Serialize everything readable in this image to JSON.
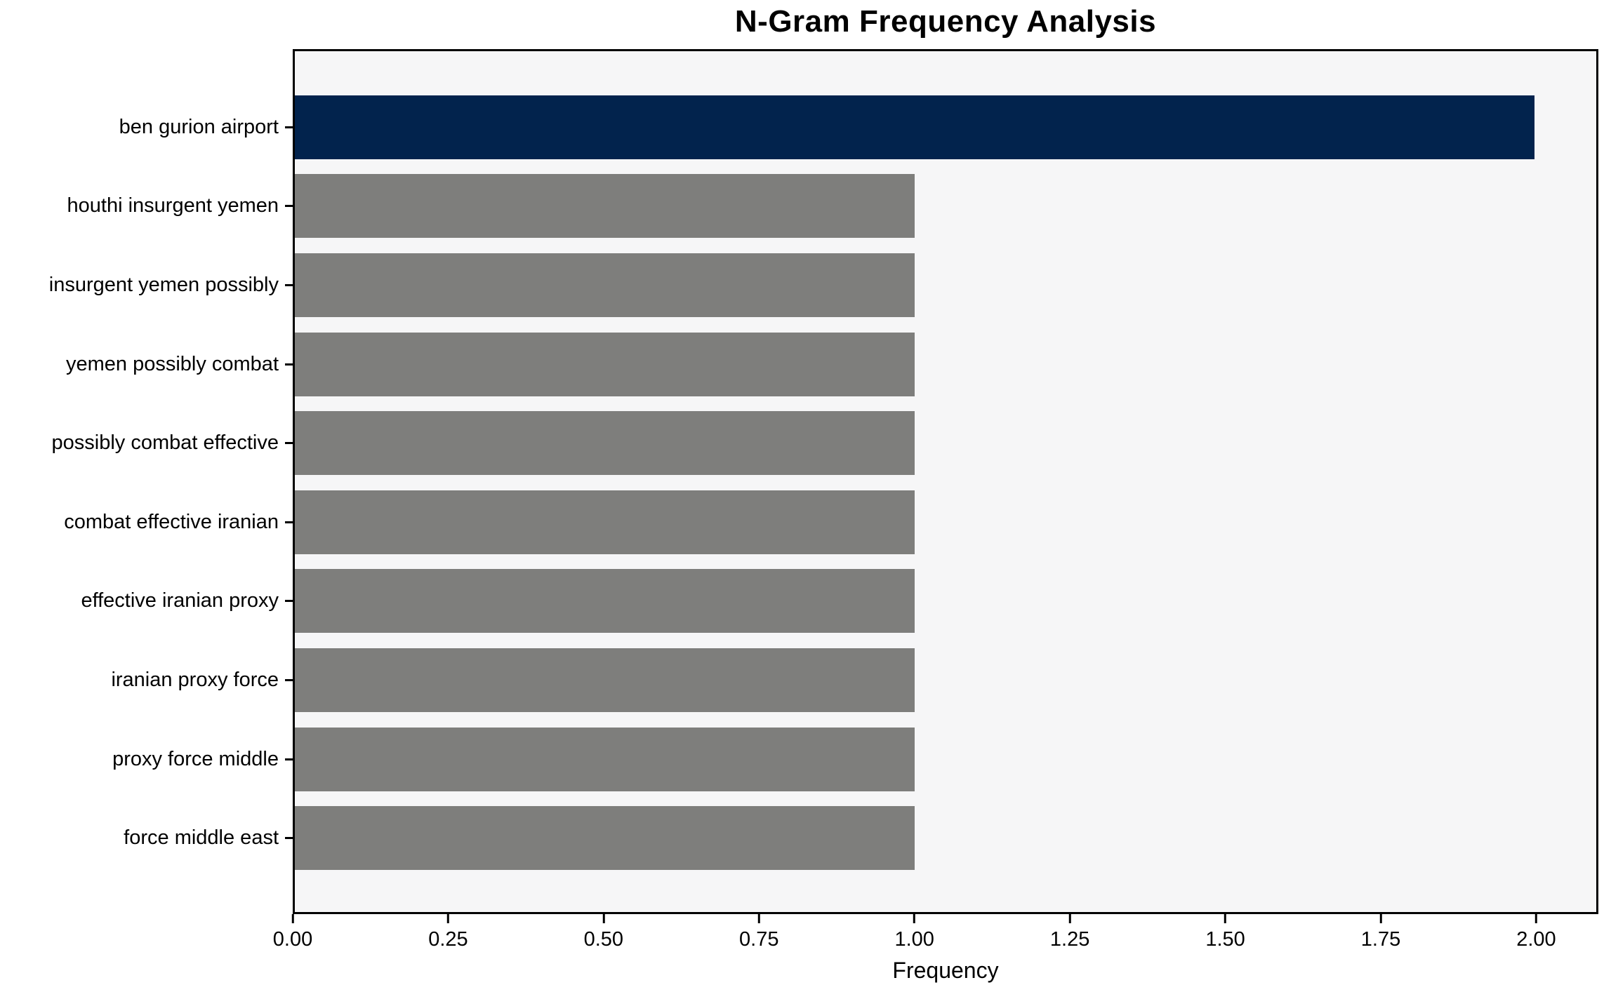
{
  "chart_data": {
    "type": "bar",
    "orientation": "horizontal",
    "title": "N-Gram Frequency Analysis",
    "xlabel": "Frequency",
    "ylabel": "",
    "grid": false,
    "legend": null,
    "categories": [
      "ben gurion airport",
      "houthi insurgent yemen",
      "insurgent yemen possibly",
      "yemen possibly combat",
      "possibly combat effective",
      "combat effective iranian",
      "effective iranian proxy",
      "iranian proxy force",
      "proxy force middle",
      "force middle east"
    ],
    "values": [
      2,
      1,
      1,
      1,
      1,
      1,
      1,
      1,
      1,
      1
    ],
    "xlim": [
      0,
      2.1
    ],
    "xticks": [
      {
        "value": 0.0,
        "label": "0.00"
      },
      {
        "value": 0.25,
        "label": "0.25"
      },
      {
        "value": 0.5,
        "label": "0.50"
      },
      {
        "value": 0.75,
        "label": "0.75"
      },
      {
        "value": 1.0,
        "label": "1.00"
      },
      {
        "value": 1.25,
        "label": "1.25"
      },
      {
        "value": 1.5,
        "label": "1.50"
      },
      {
        "value": 1.75,
        "label": "1.75"
      },
      {
        "value": 2.0,
        "label": "2.00"
      }
    ],
    "highlight_color": "#02234d",
    "base_color": "#7e7e7c",
    "bar_colors": [
      "#02234d",
      "#7e7e7c",
      "#7e7e7c",
      "#7e7e7c",
      "#7e7e7c",
      "#7e7e7c",
      "#7e7e7c",
      "#7e7e7c",
      "#7e7e7c",
      "#7e7e7c"
    ],
    "plot_background": "#f6f6f7",
    "figure_background": "#ffffff",
    "spine_color": "#000000"
  }
}
